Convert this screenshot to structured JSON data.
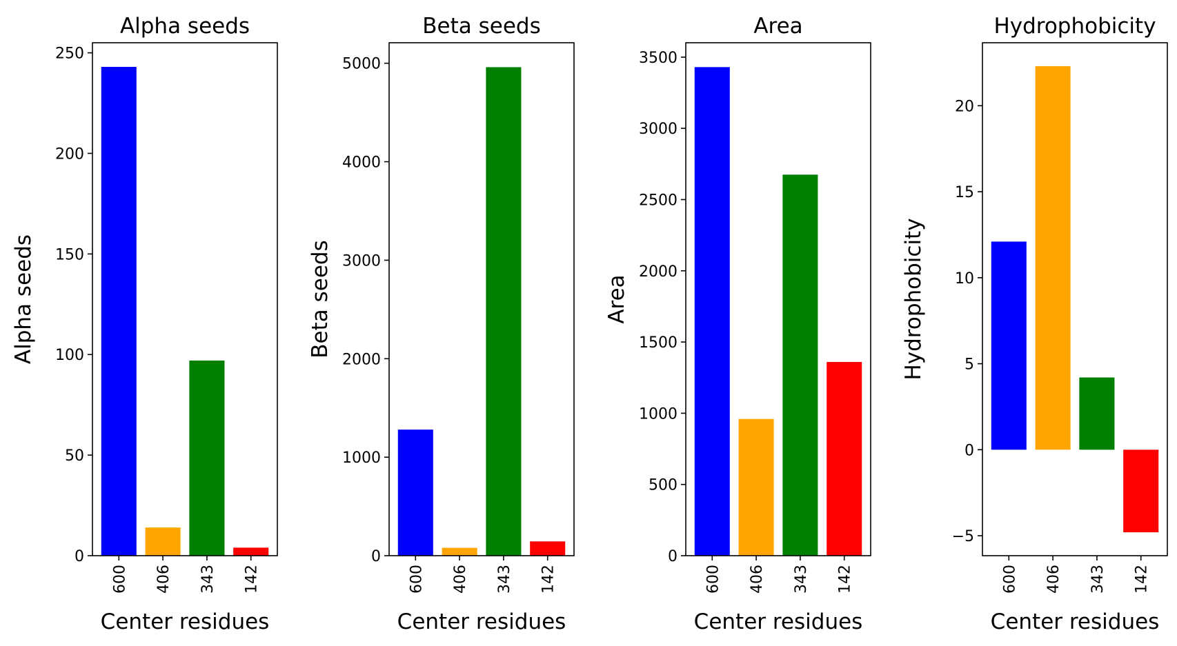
{
  "chart_data": [
    {
      "type": "bar",
      "title": "Alpha seeds",
      "xlabel": "Center residues",
      "ylabel": "Alpha seeds",
      "categories": [
        "600",
        "406",
        "343",
        "142"
      ],
      "values": [
        243,
        14,
        97,
        4
      ],
      "colors": [
        "#0000ff",
        "#ffa500",
        "#008000",
        "#ff0000"
      ],
      "ylim": [
        0,
        255
      ],
      "yticks": [
        0,
        50,
        100,
        150,
        200,
        250
      ],
      "ytick_labels": [
        "0",
        "50",
        "100",
        "150",
        "200",
        "250"
      ]
    },
    {
      "type": "bar",
      "title": "Beta seeds",
      "xlabel": "Center residues",
      "ylabel": "Beta seeds",
      "categories": [
        "600",
        "406",
        "343",
        "142"
      ],
      "values": [
        1280,
        80,
        4960,
        145
      ],
      "colors": [
        "#0000ff",
        "#ffa500",
        "#008000",
        "#ff0000"
      ],
      "ylim": [
        0,
        5208
      ],
      "yticks": [
        0,
        1000,
        2000,
        3000,
        4000,
        5000
      ],
      "ytick_labels": [
        "0",
        "1000",
        "2000",
        "3000",
        "4000",
        "5000"
      ]
    },
    {
      "type": "bar",
      "title": "Area",
      "xlabel": "Center residues",
      "ylabel": "Area",
      "categories": [
        "600",
        "406",
        "343",
        "142"
      ],
      "values": [
        3430,
        960,
        2675,
        1360
      ],
      "colors": [
        "#0000ff",
        "#ffa500",
        "#008000",
        "#ff0000"
      ],
      "ylim": [
        0,
        3601
      ],
      "yticks": [
        0,
        500,
        1000,
        1500,
        2000,
        2500,
        3000,
        3500
      ],
      "ytick_labels": [
        "0",
        "500",
        "1000",
        "1500",
        "2000",
        "2500",
        "3000",
        "3500"
      ]
    },
    {
      "type": "bar",
      "title": "Hydrophobicity",
      "xlabel": "Center residues",
      "ylabel": "Hydrophobicity",
      "categories": [
        "600",
        "406",
        "343",
        "142"
      ],
      "values": [
        12.1,
        22.3,
        4.2,
        -4.8
      ],
      "colors": [
        "#0000ff",
        "#ffa500",
        "#008000",
        "#ff0000"
      ],
      "ylim": [
        -6.16,
        23.66
      ],
      "yticks": [
        -5,
        0,
        5,
        10,
        15,
        20
      ],
      "ytick_labels": [
        "−5",
        "0",
        "5",
        "10",
        "15",
        "20"
      ]
    }
  ]
}
